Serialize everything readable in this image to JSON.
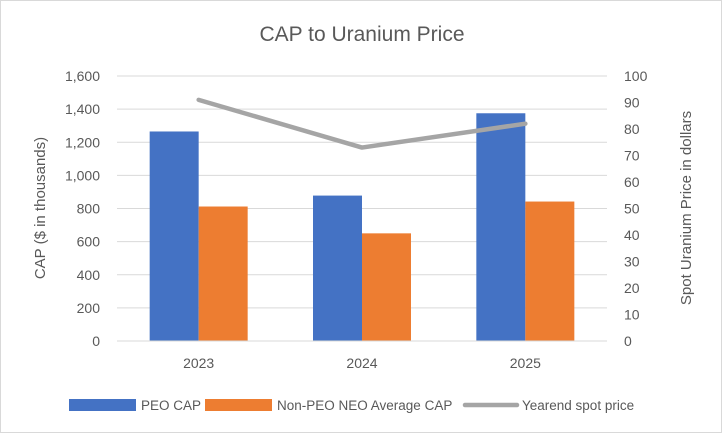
{
  "chart_data": {
    "type": "bar",
    "title": "CAP to Uranium Price",
    "categories": [
      "2023",
      "2024",
      "2025"
    ],
    "series": [
      {
        "name": "PEO CAP",
        "kind": "bar",
        "axis": "left",
        "color": "#4472C4",
        "values": [
          1265,
          878,
          1375
        ]
      },
      {
        "name": "Non-PEO NEO Average CAP",
        "kind": "bar",
        "axis": "left",
        "color": "#ED7D31",
        "values": [
          812,
          650,
          842
        ]
      },
      {
        "name": "Yearend spot price",
        "kind": "line",
        "axis": "right",
        "color": "#A5A5A5",
        "values": [
          91,
          73,
          82
        ]
      }
    ],
    "ylabel": "CAP ($ in thousands)",
    "ylabel_right": "Spot Uranium Price in dollars",
    "ylim": [
      0,
      1600
    ],
    "ylim_right": [
      0,
      100
    ],
    "yticks": [
      "0",
      "200",
      "400",
      "600",
      "800",
      "1,000",
      "1,200",
      "1,400",
      "1,600"
    ],
    "yticks_right": [
      "0",
      "10",
      "20",
      "30",
      "40",
      "50",
      "60",
      "70",
      "80",
      "90",
      "100"
    ],
    "grid": true,
    "legend": "bottom"
  }
}
